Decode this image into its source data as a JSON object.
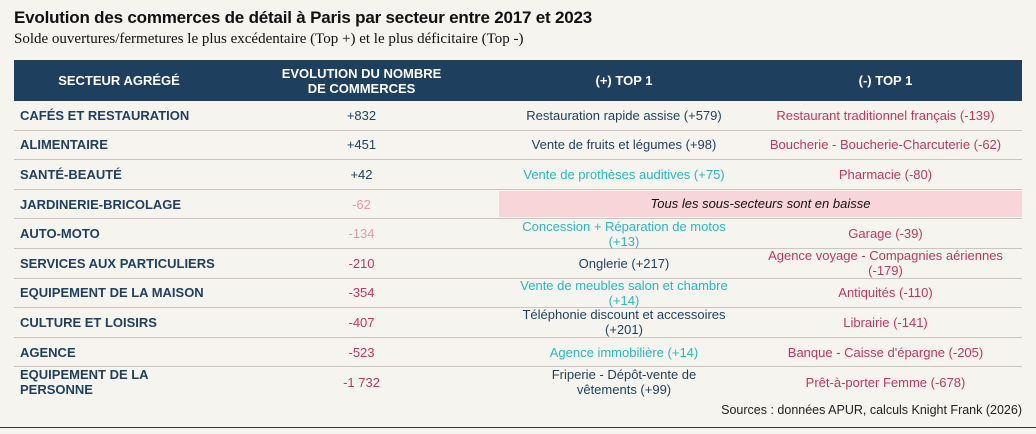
{
  "title": "Evolution des commerces de détail à Paris par secteur entre 2017 et 2023",
  "subtitle": "Solde ouvertures/fermetures le plus excédentaire (Top +) et le plus déficitaire (Top -)",
  "headers": {
    "secteur": "SECTEUR AGRÉGÉ",
    "evolution_line1": "EVOLUTION DU NOMBRE",
    "evolution_line2": "DE COMMERCES",
    "top_plus": "(+) TOP 1",
    "top_minus": "(-) TOP 1"
  },
  "colors": {
    "header_bg": "#1f3f5e",
    "sector_text": "#1f3f5e",
    "positive_dark": "#1f3f5e",
    "positive_teal": "#2cb7c0",
    "negative_pink": "#c0395c",
    "negative_light": "#e59aa8",
    "highlight_bg": "#f8d5d9"
  },
  "rows": [
    {
      "sector": "CAFÉS ET RESTAURATION",
      "evolution": "+832",
      "top_plus": "Restauration rapide assise (+579)",
      "top_minus": "Restaurant traditionnel français (-139)"
    },
    {
      "sector": "ALIMENTAIRE",
      "evolution": "+451",
      "top_plus": "Vente de fruits et légumes (+98)",
      "top_minus": "Boucherie - Boucherie-Charcuterie (-62)"
    },
    {
      "sector": "SANTÉ-BEAUTÉ",
      "evolution": "+42",
      "top_plus": "Vente de prothèses auditives (+75)",
      "top_minus": "Pharmacie (-80)"
    },
    {
      "sector": "JARDINERIE-BRICOLAGE",
      "evolution": "-62",
      "merged": "Tous les sous-secteurs sont en baisse"
    },
    {
      "sector": "AUTO-MOTO",
      "evolution": "-134",
      "top_plus_l1": "Concession + Réparation de motos",
      "top_plus_l2": "(+13)",
      "top_minus": "Garage (-39)"
    },
    {
      "sector": "SERVICES AUX PARTICULIERS",
      "evolution": "-210",
      "top_plus": "Onglerie (+217)",
      "top_minus": "Agence voyage - Compagnies aériennes (-179)"
    },
    {
      "sector": "EQUIPEMENT DE LA MAISON",
      "evolution": "-354",
      "top_plus_l1": "Vente de meubles salon et chambre",
      "top_plus_l2": "(+14)",
      "top_minus": "Antiquités (-110)"
    },
    {
      "sector": "CULTURE ET LOISIRS",
      "evolution": "-407",
      "top_plus_l1": "Téléphonie discount et accessoires",
      "top_plus_l2": "(+201)",
      "top_minus": "Librairie (-141)"
    },
    {
      "sector": "AGENCE",
      "evolution": "-523",
      "top_plus": "Agence immobilière (+14)",
      "top_minus": "Banque - Caisse d'épargne (-205)"
    },
    {
      "sector": "EQUIPEMENT DE LA PERSONNE",
      "evolution": "-1 732",
      "top_plus_l1": "Friperie - Dépôt-vente de",
      "top_plus_l2": "vêtements (+99)",
      "top_minus": "Prêt-à-porter Femme (-678)"
    }
  ],
  "source": "Sources : données APUR, calculs Knight Frank (2026)"
}
